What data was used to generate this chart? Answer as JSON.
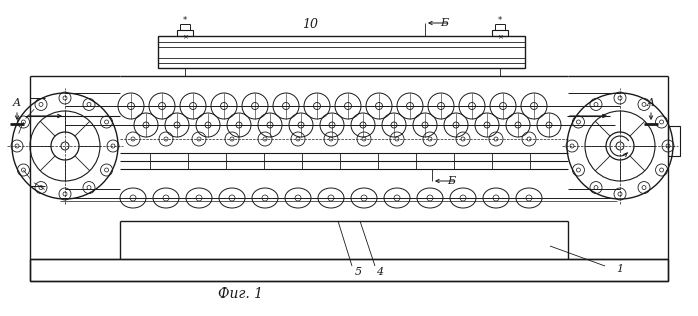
{
  "fig_width": 6.98,
  "fig_height": 3.16,
  "dpi": 100,
  "bg_color": "#ffffff",
  "lc": "#1a1a1a",
  "title_text": "Фиг. 1",
  "label_10": "10",
  "label_B_top": "Б",
  "label_B_bot": "Б",
  "label_A_left": "A",
  "label_A_right": "A",
  "label_1": "1",
  "label_4": "4",
  "label_5": "5"
}
